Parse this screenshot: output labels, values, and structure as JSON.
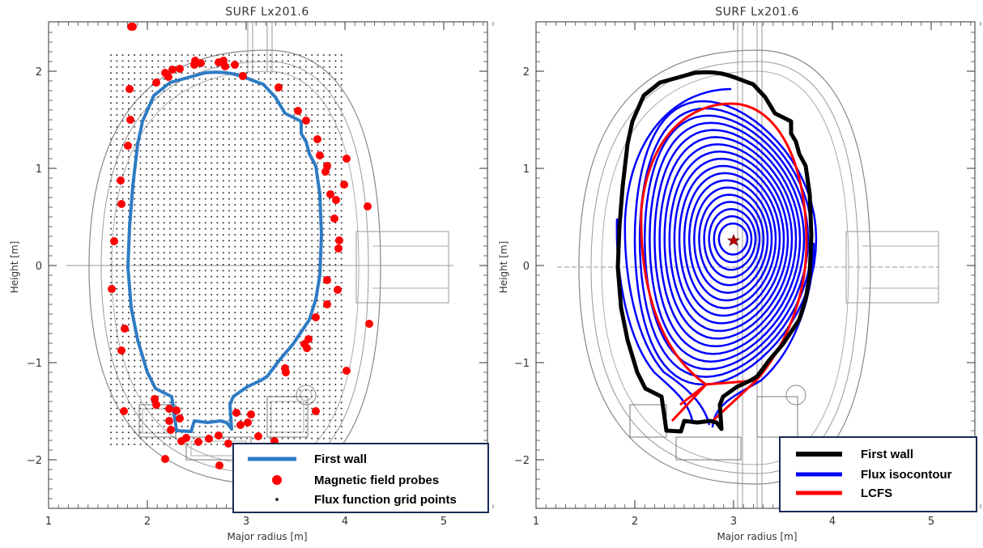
{
  "panels": [
    {
      "title": "SURF Lx201.6",
      "xlabel": "Major radius [m]",
      "ylabel": "Height [m]",
      "xticks": [
        "1",
        "2",
        "3",
        "4",
        "5"
      ],
      "yticks": [
        "2",
        "1",
        "0",
        "−1",
        "−2"
      ],
      "legend": [
        {
          "label": "First wall",
          "symbol": "line",
          "color": "#2e7bc4"
        },
        {
          "label": "Magnetic field probes",
          "symbol": "dot-large",
          "color": "#ff0000"
        },
        {
          "label": "Flux function grid points",
          "symbol": "dot-small",
          "color": "#333333"
        }
      ]
    },
    {
      "title": "SURF Lx201.6",
      "xlabel": "Major radius [m]",
      "ylabel": "Height [m]",
      "xticks": [
        "1",
        "2",
        "3",
        "4",
        "5"
      ],
      "yticks": [
        "2",
        "1",
        "0",
        "−1",
        "−2"
      ],
      "legend": [
        {
          "label": "First wall",
          "symbol": "line",
          "color": "#000000"
        },
        {
          "label": "Flux isocontour",
          "symbol": "line",
          "color": "#0000ff"
        },
        {
          "label": "LCFS",
          "symbol": "line",
          "color": "#ff0000"
        }
      ]
    }
  ]
}
